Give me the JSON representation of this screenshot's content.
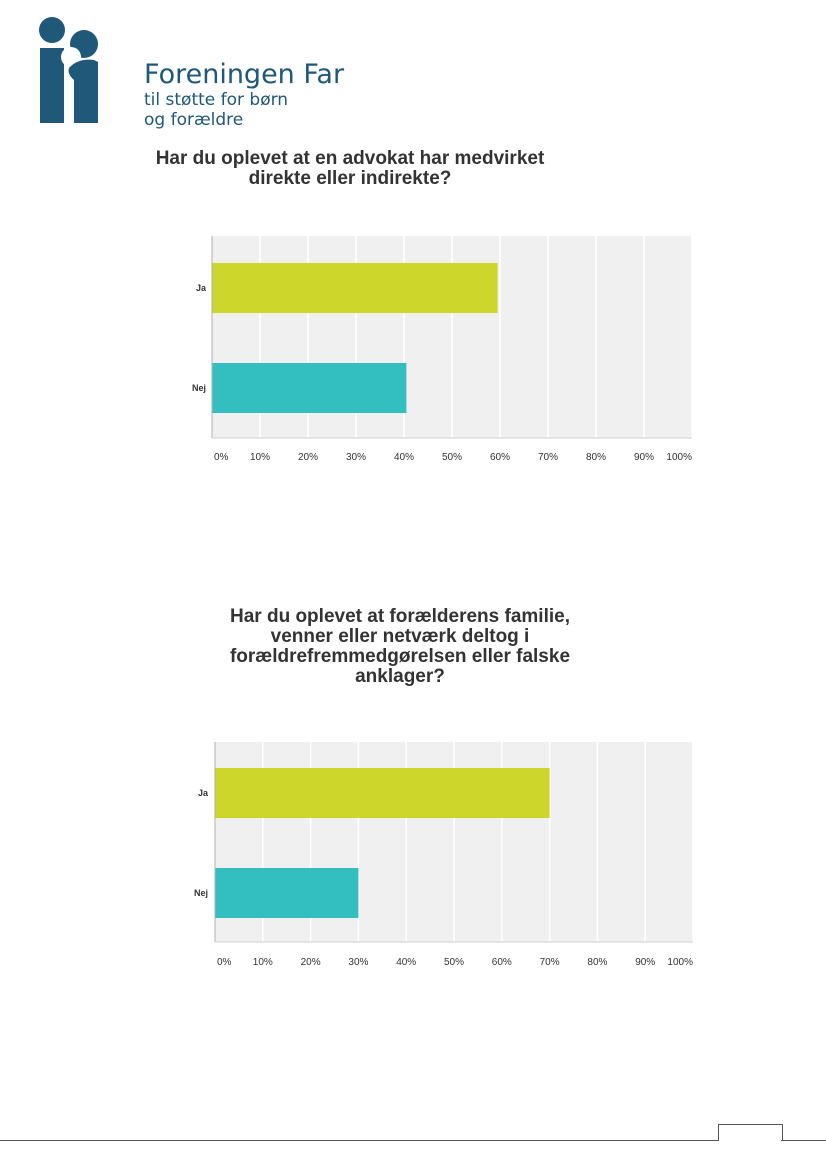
{
  "logo": {
    "name": "Foreningen Far",
    "tagline_1": "til støtte for børn",
    "tagline_2": "og forældre",
    "color": "#1f5878"
  },
  "colors": {
    "ja": "#cdd62a",
    "nej": "#33bfbf",
    "plot_bg": "#f0f0f0",
    "grid": "#ffffff"
  },
  "chart_data": [
    {
      "type": "bar",
      "orientation": "horizontal",
      "title": "Har du oplevet at en advokat har medvirket direkte eller indirekte?",
      "title_lines": [
        "Har du oplevet at en advokat har medvirket",
        "direkte eller indirekte?"
      ],
      "categories": [
        "Ja",
        "Nej"
      ],
      "values": [
        59.5,
        40.5
      ],
      "unit": "%",
      "xlim": [
        0,
        100
      ],
      "xticks": [
        "0%",
        "10%",
        "20%",
        "30%",
        "40%",
        "50%",
        "60%",
        "70%",
        "80%",
        "90%",
        "100%"
      ],
      "grid": true,
      "xlabel": "",
      "ylabel": ""
    },
    {
      "type": "bar",
      "orientation": "horizontal",
      "title": "Har du oplevet at forælderens familie, venner eller netværk deltog i forældrefremmedgørelsen eller falske anklager?",
      "title_lines": [
        "Har du oplevet at forælderens familie,",
        "venner eller netværk deltog i",
        "forældrefremmedgørelsen eller falske",
        "anklager?"
      ],
      "categories": [
        "Ja",
        "Nej"
      ],
      "values": [
        70,
        30
      ],
      "unit": "%",
      "xlim": [
        0,
        100
      ],
      "xticks": [
        "0%",
        "10%",
        "20%",
        "30%",
        "40%",
        "50%",
        "60%",
        "70%",
        "80%",
        "90%",
        "100%"
      ],
      "grid": true,
      "xlabel": "",
      "ylabel": ""
    }
  ]
}
